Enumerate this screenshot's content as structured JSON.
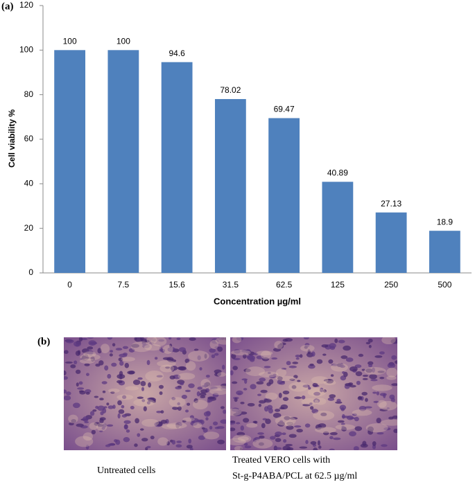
{
  "chart_data": {
    "type": "bar",
    "panel_label": "(a)",
    "x_label": "Concentration µg/ml",
    "y_label": "Cell viability %",
    "categories": [
      "0",
      "7.5",
      "15.6",
      "31.5",
      "62.5",
      "125",
      "250",
      "500"
    ],
    "values": [
      100,
      100,
      94.6,
      78.02,
      69.47,
      40.89,
      27.13,
      18.9
    ],
    "color": "#4f81bd",
    "ylim": [
      0,
      120
    ],
    "yticks": [
      0,
      20,
      40,
      60,
      80,
      100,
      120
    ],
    "grid": false
  },
  "panel_b": {
    "label": "(b)",
    "captions": [
      [
        "Untreated cells"
      ],
      [
        "Treated VERO cells with",
        "St-g-P4ABA/PCL at 62.5 µg/ml"
      ]
    ]
  }
}
